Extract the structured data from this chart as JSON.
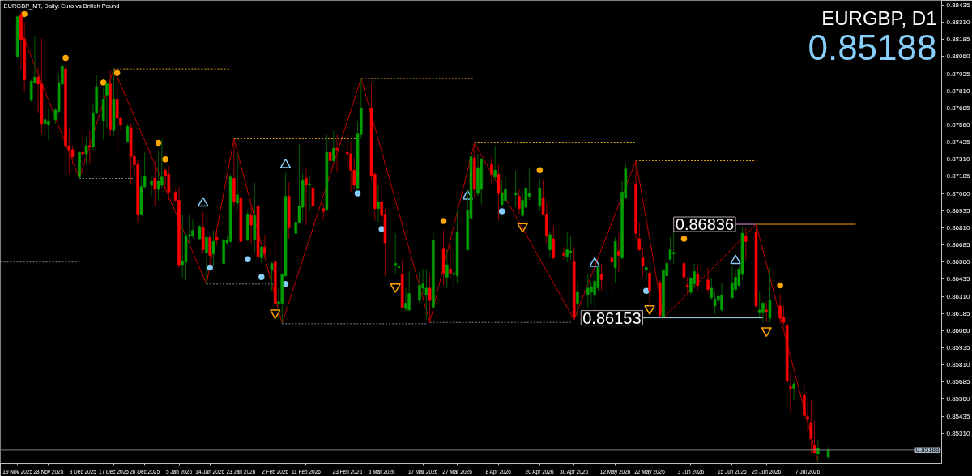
{
  "chart_data": {
    "type": "candlestick",
    "title": "EURGBP_MT, Daily: Euro vs British Pound",
    "annotations": [
      "EURGBP, D1",
      "0.85188",
      {
        "text": "0.86836",
        "x": "2026-06-16",
        "y": 0.86836
      },
      {
        "text": "0.86153",
        "x": "2026-05-20",
        "y": 0.86153
      }
    ],
    "x": [
      "2025-11-19",
      "2025-11-20",
      "2025-11-21",
      "2025-11-23",
      "2025-11-24",
      "2025-11-25",
      "2025-11-26",
      "2025-11-27",
      "2025-11-28",
      "2025-11-30",
      "2025-12-01",
      "2025-12-02",
      "2025-12-03",
      "2025-12-04",
      "2025-12-05",
      "2025-12-07",
      "2025-12-08",
      "2025-12-09",
      "2025-12-10",
      "2025-12-11",
      "2025-12-12",
      "2025-12-14",
      "2025-12-15",
      "2025-12-16",
      "2025-12-17",
      "2025-12-18",
      "2025-12-19",
      "2025-12-21",
      "2025-12-22",
      "2025-12-23",
      "2025-12-24",
      "2025-12-25",
      "2025-12-26",
      "2025-12-28",
      "2025-12-29",
      "2025-12-30",
      "2025-12-31",
      "2026-01-01",
      "2026-01-02",
      "2026-01-04",
      "2026-01-05",
      "2026-01-06",
      "2026-01-07",
      "2026-01-08",
      "2026-01-09",
      "2026-01-11",
      "2026-01-12",
      "2026-01-13",
      "2026-01-14",
      "2026-01-15",
      "2026-01-16",
      "2026-01-18",
      "2026-01-19",
      "2026-01-20",
      "2026-01-21",
      "2026-01-22",
      "2026-01-23",
      "2026-01-25",
      "2026-01-26",
      "2026-01-27",
      "2026-01-28",
      "2026-01-29",
      "2026-01-30",
      "2026-02-01",
      "2026-02-02",
      "2026-02-03",
      "2026-02-04",
      "2026-02-05",
      "2026-02-06",
      "2026-02-08",
      "2026-02-09",
      "2026-02-10",
      "2026-02-11",
      "2026-02-12",
      "2026-02-13",
      "2026-02-16",
      "2026-02-17",
      "2026-02-18",
      "2026-02-19",
      "2026-02-20",
      "2026-02-23",
      "2026-02-24",
      "2026-02-25",
      "2026-02-26",
      "2026-02-27",
      "2026-03-02",
      "2026-03-03",
      "2026-03-04",
      "2026-03-05",
      "2026-03-06",
      "2026-03-09",
      "2026-03-10",
      "2026-03-11",
      "2026-03-12",
      "2026-03-13",
      "2026-03-16",
      "2026-03-17",
      "2026-03-18",
      "2026-03-19",
      "2026-03-20",
      "2026-03-23",
      "2026-03-24",
      "2026-03-25",
      "2026-03-26",
      "2026-03-27",
      "2026-03-30",
      "2026-03-31",
      "2026-04-01",
      "2026-04-02",
      "2026-04-03",
      "2026-04-06",
      "2026-04-07",
      "2026-04-08",
      "2026-04-09",
      "2026-04-10",
      "2026-04-13",
      "2026-04-14",
      "2026-04-15",
      "2026-04-16",
      "2026-04-17",
      "2026-04-20",
      "2026-04-21",
      "2026-04-22",
      "2026-04-23",
      "2026-04-24",
      "2026-04-27",
      "2026-04-28",
      "2026-04-29",
      "2026-04-30",
      "2026-05-01",
      "2026-05-04",
      "2026-05-05",
      "2026-05-06",
      "2026-05-07",
      "2026-05-08",
      "2026-05-11",
      "2026-05-12",
      "2026-05-13",
      "2026-05-14",
      "2026-05-15",
      "2026-05-18",
      "2026-05-19",
      "2026-05-20",
      "2026-05-21",
      "2026-05-22",
      "2026-05-25",
      "2026-05-26",
      "2026-05-27",
      "2026-05-28",
      "2026-05-29",
      "2026-06-01",
      "2026-06-02",
      "2026-06-03",
      "2026-06-04",
      "2026-06-05",
      "2026-06-08",
      "2026-06-09",
      "2026-06-10",
      "2026-06-11",
      "2026-06-12",
      "2026-06-15",
      "2026-06-16",
      "2026-06-17",
      "2026-06-18",
      "2026-06-19",
      "2026-06-22",
      "2026-06-23",
      "2026-06-24",
      "2026-06-25",
      "2026-06-26",
      "2026-06-29",
      "2026-06-30",
      "2026-07-01",
      "2026-07-02",
      "2026-07-03",
      "2026-07-06",
      "2026-07-07",
      "2026-07-08",
      "2026-07-09",
      "2026-07-10",
      "2026-07-13"
    ],
    "ohlc": [
      [
        0.8806,
        0.8836,
        0.8805,
        0.8835
      ],
      [
        0.8836,
        0.8839,
        0.8796,
        0.8818
      ],
      [
        0.8819,
        0.8831,
        0.878,
        0.8789
      ],
      [
        0.8774,
        0.879,
        0.8773,
        0.8788
      ],
      [
        0.8787,
        0.8821,
        0.8786,
        0.8791
      ],
      [
        0.8791,
        0.8798,
        0.8765,
        0.8786
      ],
      [
        0.8786,
        0.8819,
        0.875,
        0.8757
      ],
      [
        0.8757,
        0.8771,
        0.8746,
        0.876
      ],
      [
        0.8756,
        0.8768,
        0.8745,
        0.8759
      ],
      [
        0.876,
        0.8768,
        0.8757,
        0.8767
      ],
      [
        0.8766,
        0.8794,
        0.8765,
        0.8787
      ],
      [
        0.8786,
        0.8801,
        0.8783,
        0.8799
      ],
      [
        0.8797,
        0.8799,
        0.8738,
        0.8741
      ],
      [
        0.8741,
        0.8754,
        0.872,
        0.8738
      ],
      [
        0.8738,
        0.8741,
        0.8728,
        0.8733
      ],
      [
        0.8718,
        0.8737,
        0.8717,
        0.8736
      ],
      [
        0.8736,
        0.8753,
        0.872,
        0.8735
      ],
      [
        0.8735,
        0.8747,
        0.8727,
        0.8741
      ],
      [
        0.8741,
        0.8752,
        0.8728,
        0.874
      ],
      [
        0.874,
        0.8771,
        0.8738,
        0.8765
      ],
      [
        0.8765,
        0.8792,
        0.8764,
        0.8784
      ],
      [
        0.8759,
        0.8783,
        0.8745,
        0.8775
      ],
      [
        0.8778,
        0.8787,
        0.8754,
        0.8786
      ],
      [
        0.8786,
        0.8796,
        0.8748,
        0.8753
      ],
      [
        0.8752,
        0.8797,
        0.8748,
        0.8775
      ],
      [
        0.8775,
        0.878,
        0.8733,
        0.8761
      ],
      [
        0.8761,
        0.8762,
        0.8752,
        0.8756
      ],
      [
        0.8744,
        0.8757,
        0.8743,
        0.8755
      ],
      [
        0.8754,
        0.8757,
        0.8712,
        0.8733
      ],
      [
        0.8733,
        0.8738,
        0.8719,
        0.8727
      ],
      [
        0.8727,
        0.873,
        0.8685,
        0.8691
      ],
      [
        0.8691,
        0.8718,
        0.869,
        0.8711
      ],
      [
        0.8711,
        0.8736,
        0.8709,
        0.8719
      ],
      [
        0.8712,
        0.8719,
        0.8704,
        0.8715
      ],
      [
        0.8717,
        0.8729,
        0.8697,
        0.8709
      ],
      [
        0.8709,
        0.8737,
        0.8701,
        0.8715
      ],
      [
        0.8712,
        0.8746,
        0.871,
        0.8718
      ],
      [
        0.8723,
        0.8725,
        0.8709,
        0.8719
      ],
      [
        0.872,
        0.8726,
        0.8701,
        0.8707
      ],
      [
        0.8707,
        0.8709,
        0.87,
        0.8701
      ],
      [
        0.8701,
        0.8711,
        0.8652,
        0.8654
      ],
      [
        0.8654,
        0.8691,
        0.8644,
        0.8657
      ],
      [
        0.8656,
        0.8677,
        0.8643,
        0.8675
      ],
      [
        0.8675,
        0.8691,
        0.8669,
        0.8676
      ],
      [
        0.8675,
        0.8687,
        0.8673,
        0.8679
      ],
      [
        0.8673,
        0.8683,
        0.8672,
        0.8682
      ],
      [
        0.8681,
        0.8693,
        0.8662,
        0.8665
      ],
      [
        0.8663,
        0.8675,
        0.864,
        0.8674
      ],
      [
        0.8674,
        0.8675,
        0.8654,
        0.8661
      ],
      [
        0.8662,
        0.8679,
        0.8653,
        0.8671
      ],
      [
        0.8674,
        0.868,
        0.8668,
        0.8672
      ],
      [
        0.8655,
        0.8673,
        0.8654,
        0.8672
      ],
      [
        0.867,
        0.8675,
        0.8668,
        0.8672
      ],
      [
        0.8671,
        0.872,
        0.867,
        0.8718
      ],
      [
        0.8717,
        0.8746,
        0.8697,
        0.87
      ],
      [
        0.8699,
        0.8736,
        0.8694,
        0.8705
      ],
      [
        0.8703,
        0.8709,
        0.8658,
        0.8671
      ],
      [
        0.8672,
        0.8694,
        0.8671,
        0.8691
      ],
      [
        0.869,
        0.8697,
        0.8669,
        0.8683
      ],
      [
        0.8672,
        0.8714,
        0.8663,
        0.869
      ],
      [
        0.8697,
        0.8699,
        0.8647,
        0.866
      ],
      [
        0.8659,
        0.8668,
        0.8655,
        0.8667
      ],
      [
        0.8667,
        0.8676,
        0.8659,
        0.8662
      ],
      [
        0.865,
        0.8656,
        0.8635,
        0.8655
      ],
      [
        0.8656,
        0.8674,
        0.8624,
        0.8626
      ],
      [
        0.8626,
        0.8637,
        0.8614,
        0.8627
      ],
      [
        0.8626,
        0.8648,
        0.8611,
        0.8647
      ],
      [
        0.8646,
        0.8721,
        0.8645,
        0.8704
      ],
      [
        0.8704,
        0.8714,
        0.8673,
        0.8681
      ],
      [
        0.8677,
        0.8686,
        0.8676,
        0.8685
      ],
      [
        0.8685,
        0.8742,
        0.8684,
        0.8697
      ],
      [
        0.8696,
        0.8721,
        0.8686,
        0.8716
      ],
      [
        0.8717,
        0.8724,
        0.8683,
        0.8712
      ],
      [
        0.8712,
        0.8718,
        0.8693,
        0.8713
      ],
      [
        0.871,
        0.8721,
        0.8695,
        0.8697
      ],
      [
        0.8695,
        0.8699,
        0.8687,
        0.8693
      ],
      [
        0.8694,
        0.8749,
        0.8693,
        0.8736
      ],
      [
        0.8736,
        0.8739,
        0.872,
        0.873
      ],
      [
        0.873,
        0.8752,
        0.8729,
        0.8739
      ],
      [
        0.8739,
        0.8749,
        0.8721,
        0.8738
      ],
      [
        0.8736,
        0.8749,
        0.8726,
        0.8735
      ],
      [
        0.8735,
        0.8744,
        0.8707,
        0.8723
      ],
      [
        0.8723,
        0.8732,
        0.8709,
        0.8712
      ],
      [
        0.871,
        0.8759,
        0.8709,
        0.875
      ],
      [
        0.8749,
        0.879,
        0.8746,
        0.8768
      ],
      [
        0.8768,
        0.8787,
        0.8715,
        0.8719
      ],
      [
        0.872,
        0.8722,
        0.8686,
        0.8695
      ],
      [
        0.8695,
        0.8712,
        0.8685,
        0.87
      ],
      [
        0.87,
        0.8712,
        0.8685,
        0.869
      ],
      [
        0.8691,
        0.8695,
        0.8646,
        0.867
      ],
      [
        0.8654,
        0.8677,
        0.8647,
        0.8655
      ],
      [
        0.8652,
        0.8661,
        0.8644,
        0.8653
      ],
      [
        0.8647,
        0.8658,
        0.8622,
        0.8623
      ],
      [
        0.8622,
        0.8637,
        0.862,
        0.8626
      ],
      [
        0.8621,
        0.8649,
        0.862,
        0.8633
      ],
      [
        0.8628,
        0.8649,
        0.8626,
        0.8639
      ],
      [
        0.8637,
        0.8651,
        0.8632,
        0.864
      ],
      [
        0.8632,
        0.8651,
        0.8614,
        0.8637
      ],
      [
        0.8637,
        0.8648,
        0.8612,
        0.8628
      ],
      [
        0.8623,
        0.8679,
        0.8622,
        0.8672
      ],
      [
        0.8666,
        0.8679,
        0.8639,
        0.8648
      ],
      [
        0.8645,
        0.8665,
        0.8637,
        0.8654
      ],
      [
        0.8651,
        0.8669,
        0.8645,
        0.8648
      ],
      [
        0.8647,
        0.8663,
        0.8637,
        0.8648
      ],
      [
        0.8646,
        0.8694,
        0.8641,
        0.8678
      ],
      [
        0.8665,
        0.8709,
        0.8664,
        0.8694
      ],
      [
        0.8688,
        0.8737,
        0.8677,
        0.8733
      ],
      [
        0.8732,
        0.8743,
        0.8703,
        0.8709
      ],
      [
        0.8706,
        0.8735,
        0.8704,
        0.8725
      ],
      [
        0.8709,
        0.8732,
        0.8698,
        0.8731
      ],
      [
        0.8728,
        0.8733,
        0.8712,
        0.872
      ],
      [
        0.8718,
        0.8741,
        0.8716,
        0.8723
      ],
      [
        0.872,
        0.8727,
        0.8686,
        0.8706
      ],
      [
        0.8698,
        0.8716,
        0.8697,
        0.8706
      ],
      [
        0.8701,
        0.872,
        0.87,
        0.8709
      ],
      [
        0.8705,
        0.8723,
        0.8696,
        0.8706
      ],
      [
        0.8704,
        0.8709,
        0.8691,
        0.8695
      ],
      [
        0.869,
        0.8706,
        0.8689,
        0.8701
      ],
      [
        0.8696,
        0.8719,
        0.8695,
        0.871
      ],
      [
        0.8704,
        0.8724,
        0.8701,
        0.8706
      ],
      [
        0.8697,
        0.8717,
        0.8693,
        0.871
      ],
      [
        0.8703,
        0.8716,
        0.869,
        0.8691
      ],
      [
        0.8691,
        0.8699,
        0.8669,
        0.8675
      ],
      [
        0.8665,
        0.8678,
        0.8659,
        0.8676
      ],
      [
        0.8673,
        0.8683,
        0.8658,
        0.8659
      ],
      [
        0.8662,
        0.8667,
        0.8658,
        0.8661
      ],
      [
        0.866,
        0.8678,
        0.8656,
        0.8665
      ],
      [
        0.8663,
        0.8675,
        0.8658,
        0.8664
      ],
      [
        0.8656,
        0.8667,
        0.8614,
        0.8616
      ],
      [
        0.8626,
        0.8641,
        0.8616,
        0.8634
      ],
      [
        0.8632,
        0.8647,
        0.8623,
        0.8637
      ],
      [
        0.8634,
        0.8642,
        0.8626,
        0.8638
      ],
      [
        0.8632,
        0.8651,
        0.8621,
        0.8642
      ],
      [
        0.8637,
        0.8653,
        0.8635,
        0.8652
      ],
      [
        0.8647,
        0.8655,
        0.8635,
        0.8643
      ],
      [
        0.8659,
        0.867,
        0.8629,
        0.8656
      ],
      [
        0.8652,
        0.8674,
        0.8641,
        0.8671
      ],
      [
        0.8664,
        0.8677,
        0.8649,
        0.8661
      ],
      [
        0.8659,
        0.8715,
        0.8658,
        0.8707
      ],
      [
        0.8703,
        0.8728,
        0.8702,
        0.8724
      ],
      [
        0.8713,
        0.873,
        0.8673,
        0.8677
      ],
      [
        0.8673,
        0.8685,
        0.8664,
        0.8665
      ],
      [
        0.8659,
        0.8667,
        0.8645,
        0.8653
      ],
      [
        0.865,
        0.8653,
        0.8643,
        0.8652
      ],
      [
        0.8648,
        0.865,
        0.8621,
        0.8635
      ],
      [
        0.8641,
        0.8643,
        0.8616,
        0.8617
      ],
      [
        0.8616,
        0.8651,
        0.86153,
        0.865
      ],
      [
        0.8646,
        0.8662,
        0.8645,
        0.8655
      ],
      [
        0.8658,
        0.8674,
        0.8657,
        0.8665
      ],
      [
        0.8662,
        0.8678,
        0.8655,
        0.8663
      ],
      [
        0.8655,
        0.8667,
        0.8637,
        0.8645
      ],
      [
        0.8639,
        0.8645,
        0.8632,
        0.8638
      ],
      [
        0.8634,
        0.8645,
        0.8632,
        0.8644
      ],
      [
        0.864,
        0.8655,
        0.8637,
        0.8649
      ],
      [
        0.8647,
        0.8653,
        0.8635,
        0.8639
      ],
      [
        0.8643,
        0.8652,
        0.8633,
        0.8636
      ],
      [
        0.863,
        0.8644,
        0.8628,
        0.8637
      ],
      [
        0.8624,
        0.8634,
        0.8618,
        0.8629
      ],
      [
        0.8628,
        0.8635,
        0.8626,
        0.8631
      ],
      [
        0.8621,
        0.8641,
        0.862,
        0.8632
      ],
      [
        0.863,
        0.8653,
        0.8629,
        0.8641
      ],
      [
        0.8636,
        0.8651,
        0.8634,
        0.8645
      ],
      [
        0.8639,
        0.8653,
        0.8638,
        0.8651
      ],
      [
        0.8647,
        0.8682,
        0.8643,
        0.8677
      ],
      [
        0.8675,
        0.8681,
        0.8657,
        0.8671
      ],
      [
        0.8678,
        0.86836,
        0.8623,
        0.8624
      ],
      [
        0.8619,
        0.8635,
        0.8616,
        0.8621
      ],
      [
        0.8619,
        0.8627,
        0.8612,
        0.8626
      ],
      [
        0.8621,
        0.8627,
        0.8612,
        0.862
      ],
      [
        0.8615,
        0.8652,
        0.8612,
        0.8628
      ],
      [
        0.8624,
        0.8633,
        0.8611,
        0.8615
      ],
      [
        0.8616,
        0.8624,
        0.861,
        0.8612
      ],
      [
        0.861,
        0.8618,
        0.8566,
        0.8569
      ],
      [
        0.8565,
        0.8575,
        0.8546,
        0.8564
      ],
      [
        0.8564,
        0.8569,
        0.8555,
        0.8567
      ],
      [
        0.8559,
        0.8568,
        0.8541,
        0.8544
      ],
      [
        0.8543,
        0.8555,
        0.8533,
        0.8542
      ],
      [
        0.8539,
        0.8555,
        0.8516,
        0.8527
      ],
      [
        0.8522,
        0.854,
        0.8516,
        0.8517
      ],
      [
        0.8516,
        0.8526,
        0.851,
        0.852
      ],
      [
        0.8514,
        0.8521,
        0.8512,
        0.85188
      ]
    ],
    "colors": [
      "#00a000",
      "#ff0000",
      "#ff0000",
      "#00a000",
      "#00a000",
      "#ff0000",
      "#ff0000",
      "#00a000",
      "#00a000",
      "#00a000",
      "#00a000",
      "#00a000",
      "#ff0000",
      "#ff0000",
      "#ff0000",
      "#00a000",
      "#ff0000",
      "#00a000",
      "#ff0000",
      "#00a000",
      "#00a000",
      "#00a000",
      "#00a000",
      "#ff0000",
      "#00a000",
      "#ff0000",
      "#ff0000",
      "#00a000",
      "#ff0000",
      "#ff0000",
      "#ff0000",
      "#00a000",
      "#00a000",
      "#00a000",
      "#ff0000",
      "#00a000",
      "#00a000",
      "#ff0000",
      "#ff0000",
      "#ff0000",
      "#ff0000",
      "#00a000",
      "#00a000",
      "#00a000",
      "#00a000",
      "#00a000",
      "#ff0000",
      "#00a000",
      "#ff0000",
      "#00a000",
      "#ff0000",
      "#00a000",
      "#00a000",
      "#00a000",
      "#ff0000",
      "#00a000",
      "#ff0000",
      "#00a000",
      "#ff0000",
      "#00a000",
      "#ff0000",
      "#00a000",
      "#ff0000",
      "#00a000",
      "#ff0000",
      "#00a000",
      "#00a000",
      "#00a000",
      "#ff0000",
      "#00a000",
      "#00a000",
      "#00a000",
      "#ff0000",
      "#00a000",
      "#ff0000",
      "#ff0000",
      "#00a000",
      "#ff0000",
      "#00a000",
      "#ff0000",
      "#ff0000",
      "#ff0000",
      "#ff0000",
      "#00a000",
      "#00a000",
      "#ff0000",
      "#ff0000",
      "#00a000",
      "#ff0000",
      "#ff0000",
      "#00a000",
      "#00a000",
      "#ff0000",
      "#00a000",
      "#00a000",
      "#00a000",
      "#00a000",
      "#00a000",
      "#ff0000",
      "#00a000",
      "#ff0000",
      "#00a000",
      "#ff0000",
      "#00a000",
      "#00a000",
      "#00a000",
      "#00a000",
      "#ff0000",
      "#00a000",
      "#00a000",
      "#ff0000",
      "#00a000",
      "#ff0000",
      "#00a000",
      "#00a000",
      "#00a000",
      "#ff0000",
      "#00a000",
      "#00a000",
      "#00a000",
      "#00a000",
      "#ff0000",
      "#ff0000",
      "#00a000",
      "#ff0000",
      "#ff0000",
      "#00a000",
      "#00a000",
      "#ff0000",
      "#00a000",
      "#00a000",
      "#00a000",
      "#00a000",
      "#00a000",
      "#ff0000",
      "#ff0000",
      "#00a000",
      "#ff0000",
      "#00a000",
      "#00a000",
      "#ff0000",
      "#ff0000",
      "#ff0000",
      "#00a000",
      "#ff0000",
      "#ff0000",
      "#00a000",
      "#00a000",
      "#00a000",
      "#00a000",
      "#ff0000",
      "#ff0000",
      "#00a000",
      "#00a000",
      "#ff0000",
      "#ff0000",
      "#00a000",
      "#00a000",
      "#00a000",
      "#00a000",
      "#00a000",
      "#00a000",
      "#00a000",
      "#00a000",
      "#ff0000",
      "#ff0000",
      "#00a000",
      "#00a000",
      "#ff0000",
      "#00a000",
      "#ff0000",
      "#ff0000",
      "#ff0000",
      "#ff0000",
      "#00a000",
      "#ff0000",
      "#ff0000",
      "#ff0000",
      "#ff0000",
      "#00a000",
      "#00a000"
    ],
    "xlim": [
      "2025-11-14",
      "2026-08-15"
    ],
    "xticks": [
      {
        "value": "2025-11-19",
        "label": "19 Nov 2025"
      },
      {
        "value": "2025-11-28",
        "label": "28 Nov 2025"
      },
      {
        "value": "2025-12-08",
        "label": "8 Dec 2025"
      },
      {
        "value": "2025-12-17",
        "label": "17 Dec 2025"
      },
      {
        "value": "2025-12-26",
        "label": "26 Dec 2025"
      },
      {
        "value": "2026-01-05",
        "label": "5 Jan 2026"
      },
      {
        "value": "2026-01-14",
        "label": "14 Jan 2026"
      },
      {
        "value": "2026-01-23",
        "label": "23 Jan 2026"
      },
      {
        "value": "2026-02-02",
        "label": "2 Feb 2026"
      },
      {
        "value": "2026-02-11",
        "label": "11 Feb 2026"
      },
      {
        "value": "2026-02-23",
        "label": "23 Feb 2026"
      },
      {
        "value": "2026-03-05",
        "label": "5 Mar 2026"
      },
      {
        "value": "2026-03-17",
        "label": "17 Mar 2026"
      },
      {
        "value": "2026-03-27",
        "label": "27 Mar 2026"
      },
      {
        "value": "2026-04-08",
        "label": "8 Apr 2026"
      },
      {
        "value": "2026-04-20",
        "label": "20 Apr 2026"
      },
      {
        "value": "2026-04-30",
        "label": "30 Apr 2026"
      },
      {
        "value": "2026-05-12",
        "label": "12 May 2026"
      },
      {
        "value": "2026-05-22",
        "label": "22 May 2026"
      },
      {
        "value": "2026-06-03",
        "label": "3 Jun 2026"
      },
      {
        "value": "2026-06-15",
        "label": "15 Jun 2026"
      },
      {
        "value": "2026-06-25",
        "label": "25 Jun 2026"
      },
      {
        "value": "2026-07-07",
        "label": "7 Jul 2026"
      }
    ],
    "ylim": [
      0.8509,
      0.8847
    ],
    "yticks": [
      {
        "value": 0.8531,
        "label": "0.85310"
      },
      0.85435,
      {
        "value": 0.8556,
        "label": "0.85560"
      },
      0.85685,
      {
        "value": 0.8581,
        "label": "0.85810"
      },
      0.85935,
      {
        "value": 0.8606,
        "label": "0.86060"
      },
      0.86185,
      {
        "value": 0.8631,
        "label": "0.86310"
      },
      0.86435,
      {
        "value": 0.8656,
        "label": "0.86560"
      },
      0.86685,
      {
        "value": 0.8681,
        "label": "0.86810"
      },
      0.86935,
      {
        "value": 0.8706,
        "label": "0.87060"
      },
      0.87185,
      {
        "value": 0.8731,
        "label": "0.87310"
      },
      0.87435,
      {
        "value": 0.8756,
        "label": "0.87560"
      },
      0.87685,
      {
        "value": 0.8781,
        "label": "0.87810"
      },
      0.87935,
      {
        "value": 0.8806,
        "label": "0.88060"
      },
      0.88185,
      {
        "value": 0.8831,
        "label": "0.88310"
      },
      0.88435
    ],
    "series": [
      {
        "type": "line",
        "color": "#c00000",
        "x": [
          "2025-11-20",
          "2025-12-07",
          "2025-12-17",
          "2026-01-13",
          "2026-01-21",
          "2026-02-04",
          "2026-02-27",
          "2026-03-19",
          "2026-04-01",
          "2026-04-30",
          "2026-05-18",
          "2026-05-26",
          "2026-06-22",
          "2026-07-10"
        ],
        "values": [
          0.8825,
          0.8717,
          0.8797,
          0.864,
          0.8746,
          0.8611,
          0.879,
          0.8612,
          0.8743,
          0.8614,
          0.873,
          0.86153,
          0.86836,
          0.851
        ]
      },
      {
        "type": "line",
        "color": "#daa520",
        "line_style": "dotted",
        "x": [
          "2025-12-17",
          "2026-01-20"
        ],
        "values": [
          0.8797,
          0.8797
        ]
      },
      {
        "type": "line",
        "color": "#daa520",
        "line_style": "dotted",
        "x": [
          "2026-01-21",
          "2026-02-26"
        ],
        "values": [
          0.8746,
          0.8746
        ]
      },
      {
        "type": "line",
        "color": "#daa520",
        "line_style": "dotted",
        "x": [
          "2026-02-27",
          "2026-04-01"
        ],
        "values": [
          0.879,
          0.879
        ]
      },
      {
        "type": "line",
        "color": "#daa520",
        "line_style": "dotted",
        "x": [
          "2026-04-01",
          "2026-05-18"
        ],
        "values": [
          0.8743,
          0.8743
        ]
      },
      {
        "type": "line",
        "color": "#daa520",
        "line_style": "dotted",
        "x": [
          "2026-05-18",
          "2026-06-22"
        ],
        "values": [
          0.873,
          0.873
        ]
      },
      {
        "type": "line",
        "color": "#778899",
        "line_style": "dotted",
        "x": [
          "2025-11-14",
          "2025-12-07"
        ],
        "values": [
          0.8656,
          0.8656
        ]
      },
      {
        "type": "line",
        "color": "#778899",
        "line_style": "dotted",
        "x": [
          "2025-12-07",
          "2025-12-23"
        ],
        "values": [
          0.8717,
          0.8717
        ]
      },
      {
        "type": "line",
        "color": "#778899",
        "line_style": "dotted",
        "x": [
          "2026-01-13",
          "2026-02-02"
        ],
        "values": [
          0.864,
          0.864
        ]
      },
      {
        "type": "line",
        "color": "#778899",
        "line_style": "dotted",
        "x": [
          "2026-02-04",
          "2026-03-18"
        ],
        "values": [
          0.8611,
          0.8611
        ]
      },
      {
        "type": "line",
        "color": "#778899",
        "line_style": "dotted",
        "x": [
          "2026-03-19",
          "2026-04-29"
        ],
        "values": [
          0.8612,
          0.8612
        ]
      },
      {
        "type": "line",
        "color": "#add8e6",
        "x": [
          "2026-05-20",
          "2026-06-24"
        ],
        "values": [
          0.86153,
          0.86153
        ]
      },
      {
        "type": "line",
        "color": "#dda0dd",
        "x": [
          "2026-06-16",
          "2026-06-22"
        ],
        "values": [
          0.86836,
          0.86836
        ]
      },
      {
        "type": "line",
        "color": "#ffa500",
        "x": [
          "2026-06-22",
          "2026-07-21"
        ],
        "values": [
          0.86836,
          0.86836
        ]
      },
      {
        "type": "scatter",
        "marker": "circle",
        "color": "#ffa500",
        "x": [
          "2025-11-21",
          "2025-12-03",
          "2025-12-14",
          "2025-12-18",
          "2025-12-30",
          "2026-01-01",
          "2026-03-23",
          "2026-04-20",
          "2026-06-01",
          "2026-06-29"
        ],
        "values": [
          0.8837,
          0.8805,
          0.8787,
          0.8794,
          0.8743,
          0.8731,
          0.8686,
          0.8723,
          0.8673,
          0.8639
        ]
      },
      {
        "type": "scatter",
        "marker": "circle",
        "color": "#87cefa",
        "x": [
          "2026-01-14",
          "2026-01-25",
          "2026-01-29",
          "2026-02-05",
          "2026-02-26",
          "2026-03-05",
          "2026-04-09",
          "2026-05-21"
        ],
        "values": [
          0.8652,
          0.8658,
          0.8645,
          0.864,
          0.8706,
          0.868,
          0.8693,
          0.8635
        ]
      },
      {
        "type": "scatter",
        "marker": "triangle",
        "color": "#87cefa",
        "x": [
          "2026-01-12",
          "2026-02-05",
          "2026-03-30",
          "2026-05-06",
          "2026-06-16"
        ],
        "values": [
          0.8699,
          0.8727,
          0.8704,
          0.8655,
          0.8657
        ]
      },
      {
        "type": "scatter",
        "marker": "triangle",
        "color": "#ffa500",
        "x": [
          "2026-02-02",
          "2026-03-09",
          "2026-04-15",
          "2026-05-22",
          "2026-06-25"
        ],
        "values": [
          0.8619,
          0.8638,
          0.8682,
          0.8622,
          0.8606
        ]
      }
    ],
    "ref_lines": [
      {
        "axis": "y",
        "value": 0.85188,
        "label": "0.85188",
        "color": "#808080"
      }
    ]
  }
}
